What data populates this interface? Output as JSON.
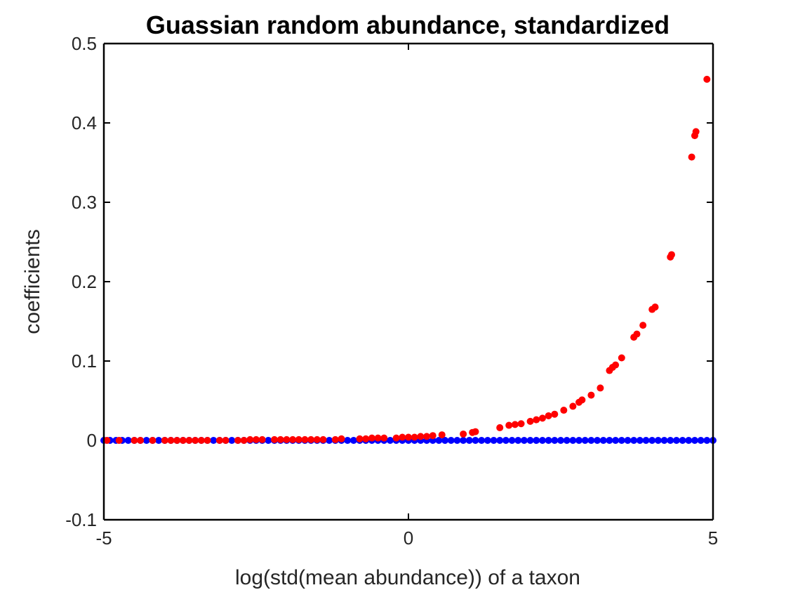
{
  "chart_data": {
    "type": "scatter",
    "title": "Guassian random abundance, standardized",
    "xlabel": "log(std(mean abundance)) of a taxon",
    "ylabel": "coefficients",
    "xlim": [
      -5,
      5
    ],
    "ylim": [
      -0.1,
      0.5
    ],
    "xticks": [
      -5,
      0,
      5
    ],
    "yticks": [
      -0.1,
      0,
      0.1,
      0.2,
      0.3,
      0.4,
      0.5
    ],
    "xtick_labels": [
      "-5",
      "0",
      "5"
    ],
    "ytick_labels": [
      "-0.1",
      "0",
      "0.1",
      "0.2",
      "0.3",
      "0.4",
      "0.5"
    ],
    "grid": false,
    "series": [
      {
        "color": "#0000ff",
        "x": [
          -5.0,
          -4.9,
          -4.8,
          -4.7,
          -4.6,
          -4.5,
          -4.4,
          -4.3,
          -4.2,
          -4.1,
          -4.0,
          -3.9,
          -3.8,
          -3.7,
          -3.6,
          -3.5,
          -3.4,
          -3.3,
          -3.2,
          -3.1,
          -3.0,
          -2.9,
          -2.8,
          -2.7,
          -2.6,
          -2.5,
          -2.4,
          -2.3,
          -2.2,
          -2.1,
          -2.0,
          -1.9,
          -1.8,
          -1.7,
          -1.6,
          -1.5,
          -1.4,
          -1.3,
          -1.2,
          -1.1,
          -1.0,
          -0.9,
          -0.8,
          -0.7,
          -0.6,
          -0.5,
          -0.4,
          -0.3,
          -0.2,
          -0.1,
          0.0,
          0.1,
          0.2,
          0.3,
          0.4,
          0.5,
          0.6,
          0.7,
          0.8,
          0.9,
          1.0,
          1.1,
          1.2,
          1.3,
          1.4,
          1.5,
          1.6,
          1.7,
          1.8,
          1.9,
          2.0,
          2.1,
          2.2,
          2.3,
          2.4,
          2.5,
          2.6,
          2.7,
          2.8,
          2.9,
          3.0,
          3.1,
          3.2,
          3.3,
          3.4,
          3.5,
          3.6,
          3.7,
          3.8,
          3.9,
          4.0,
          4.1,
          4.2,
          4.3,
          4.4,
          4.5,
          4.6,
          4.7,
          4.8,
          4.9,
          5.0
        ],
        "y": [
          0,
          0,
          0,
          0,
          0,
          0,
          0,
          0,
          0,
          0,
          0,
          0,
          0,
          0,
          0,
          0,
          0,
          0,
          0,
          0,
          0,
          0,
          0,
          0,
          0,
          0,
          0,
          0,
          0,
          0,
          0,
          0,
          0,
          0,
          0,
          0,
          0,
          0,
          0,
          0,
          0,
          0,
          0,
          0,
          0,
          0,
          0,
          0,
          0,
          0,
          0,
          0,
          0,
          0,
          0,
          0,
          0,
          0,
          0,
          0,
          0,
          0,
          0,
          0,
          0,
          0,
          0,
          0,
          0,
          0,
          0,
          0,
          0,
          0,
          0,
          0,
          0,
          0,
          0,
          0,
          0,
          0,
          0,
          0,
          0,
          0,
          0,
          0,
          0,
          0,
          0,
          0,
          0,
          0,
          0,
          0,
          0,
          0,
          0,
          0,
          0
        ]
      },
      {
        "color": "#ff0000",
        "x": [
          -4.95,
          -4.75,
          -4.5,
          -4.4,
          -4.2,
          -4.0,
          -3.9,
          -3.8,
          -3.7,
          -3.6,
          -3.5,
          -3.4,
          -3.3,
          -3.1,
          -3.0,
          -2.8,
          -2.7,
          -2.6,
          -2.5,
          -2.4,
          -2.2,
          -2.1,
          -2.0,
          -1.9,
          -1.8,
          -1.7,
          -1.6,
          -1.5,
          -1.4,
          -1.2,
          -1.1,
          -0.8,
          -0.7,
          -0.6,
          -0.5,
          -0.4,
          -0.2,
          -0.1,
          0.0,
          0.1,
          0.2,
          0.3,
          0.4,
          0.55,
          0.9,
          1.05,
          1.1,
          1.5,
          1.65,
          1.75,
          1.85,
          2.0,
          2.1,
          2.2,
          2.3,
          2.4,
          2.55,
          2.7,
          2.8,
          2.85,
          3.0,
          3.15,
          3.3,
          3.35,
          3.4,
          3.5,
          3.7,
          3.75,
          3.85,
          4.0,
          4.05,
          4.3,
          4.32,
          4.65,
          4.7,
          4.72,
          4.9
        ],
        "y": [
          0.0,
          0.0,
          0.0,
          0.0,
          0.0,
          0.0,
          0.0,
          0.0,
          0.0,
          0.0,
          0.0,
          0.0,
          0.0,
          0.0,
          0.0,
          0.0,
          0.0,
          0.001,
          0.001,
          0.001,
          0.001,
          0.001,
          0.001,
          0.001,
          0.001,
          0.001,
          0.001,
          0.001,
          0.001,
          0.001,
          0.002,
          0.002,
          0.002,
          0.003,
          0.003,
          0.003,
          0.003,
          0.004,
          0.004,
          0.004,
          0.005,
          0.005,
          0.006,
          0.007,
          0.008,
          0.01,
          0.011,
          0.016,
          0.019,
          0.02,
          0.021,
          0.024,
          0.026,
          0.028,
          0.031,
          0.033,
          0.038,
          0.043,
          0.048,
          0.051,
          0.057,
          0.066,
          0.088,
          0.092,
          0.095,
          0.104,
          0.13,
          0.134,
          0.145,
          0.165,
          0.168,
          0.231,
          0.234,
          0.357,
          0.384,
          0.389,
          0.455
        ]
      }
    ]
  }
}
